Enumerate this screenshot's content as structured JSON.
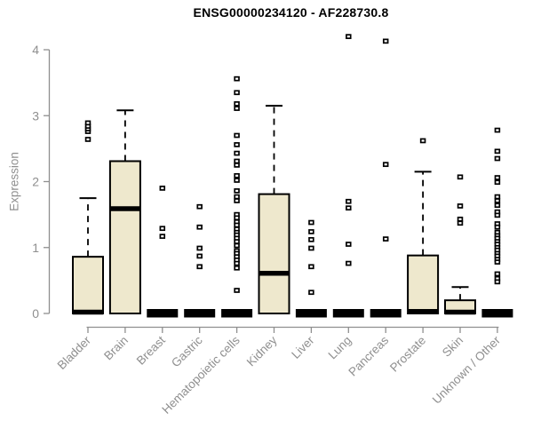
{
  "chart_data": {
    "type": "boxplot",
    "title": "ENSG00000234120 - AF228730.8",
    "ylabel": "Expression",
    "xlabel": "",
    "ylim": [
      0,
      4.25
    ],
    "yticks": [
      0,
      1,
      2,
      3,
      4
    ],
    "grid": false,
    "legend": false,
    "box_fill_color": "#EEE8CD",
    "box_stroke_color": "#000000",
    "axis_color": "#8F8F8F",
    "x_labels_rotation_deg": -45,
    "categories": [
      "Bladder",
      "Brain",
      "Breast",
      "Gastric",
      "Hematopoietic cells",
      "Kidney",
      "Liver",
      "Lung",
      "Pancreas",
      "Prostate",
      "Skin",
      "Unknown / Other"
    ],
    "series": [
      {
        "name": "Bladder",
        "q1": 0,
        "median": 0.02,
        "q3": 0.86,
        "whisker_low": 0,
        "whisker_high": 1.75,
        "outliers": [
          2.64,
          2.76,
          2.8,
          2.84,
          2.89
        ]
      },
      {
        "name": "Brain",
        "q1": 0,
        "median": 1.59,
        "q3": 2.31,
        "whisker_low": 0,
        "whisker_high": 3.08,
        "outliers": []
      },
      {
        "name": "Breast",
        "q1": 0,
        "median": 0,
        "q3": 0,
        "whisker_low": 0,
        "whisker_high": 0,
        "outliers": [
          1.9,
          1.29,
          1.17
        ]
      },
      {
        "name": "Gastric",
        "q1": 0,
        "median": 0,
        "q3": 0,
        "whisker_low": 0,
        "whisker_high": 0,
        "outliers": [
          1.62,
          1.31,
          0.99,
          0.87,
          0.71
        ]
      },
      {
        "name": "Hematopoietic cells",
        "q1": 0,
        "median": 0,
        "q3": 0,
        "whisker_low": 0,
        "whisker_high": 0,
        "outliers": [
          3.56,
          3.35,
          3.18,
          3.11,
          2.7,
          2.56,
          2.43,
          2.31,
          2.25,
          2.09,
          2.02,
          1.86,
          1.77,
          1.71,
          1.5,
          1.45,
          1.39,
          1.34,
          1.28,
          1.23,
          1.19,
          1.14,
          1.09,
          1.03,
          0.95,
          0.91,
          0.86,
          0.81,
          0.76,
          0.69,
          0.35
        ]
      },
      {
        "name": "Kidney",
        "q1": 0,
        "median": 0.61,
        "q3": 1.81,
        "whisker_low": 0,
        "whisker_high": 3.15,
        "outliers": []
      },
      {
        "name": "Liver",
        "q1": 0,
        "median": 0,
        "q3": 0,
        "whisker_low": 0,
        "whisker_high": 0,
        "outliers": [
          1.38,
          1.24,
          1.12,
          0.99,
          0.71,
          0.32
        ]
      },
      {
        "name": "Lung",
        "q1": 0,
        "median": 0,
        "q3": 0,
        "whisker_low": 0,
        "whisker_high": 0,
        "outliers": [
          4.2,
          1.7,
          1.6,
          1.05,
          0.76
        ]
      },
      {
        "name": "Pancreas",
        "q1": 0,
        "median": 0,
        "q3": 0,
        "whisker_low": 0,
        "whisker_high": 0,
        "outliers": [
          4.13,
          2.26,
          1.13
        ]
      },
      {
        "name": "Prostate",
        "q1": 0,
        "median": 0.03,
        "q3": 0.88,
        "whisker_low": 0,
        "whisker_high": 2.15,
        "outliers": [
          2.62
        ]
      },
      {
        "name": "Skin",
        "q1": 0,
        "median": 0.02,
        "q3": 0.2,
        "whisker_low": 0,
        "whisker_high": 0.4,
        "outliers": [
          2.07,
          1.63,
          1.43,
          1.37
        ]
      },
      {
        "name": "Unknown / Other",
        "q1": 0,
        "median": 0,
        "q3": 0,
        "whisker_low": 0,
        "whisker_high": 0,
        "outliers": [
          2.78,
          2.46,
          2.35,
          2.06,
          1.99,
          1.77,
          1.71,
          1.64,
          1.54,
          1.49,
          1.36,
          1.31,
          1.23,
          1.18,
          1.14,
          1.09,
          1.05,
          1.0,
          0.96,
          0.91,
          0.87,
          0.82,
          0.78,
          0.6,
          0.53,
          0.48
        ]
      }
    ]
  }
}
